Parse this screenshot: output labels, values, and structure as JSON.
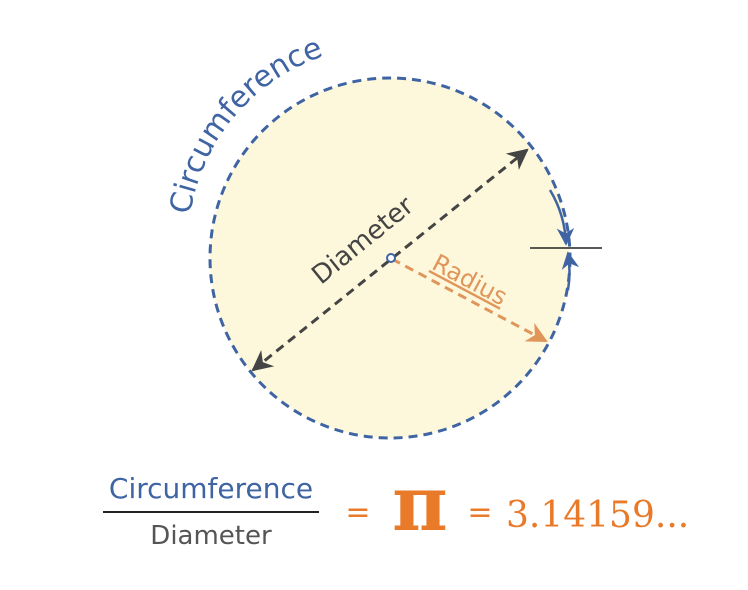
{
  "labels": {
    "circumference": "Circumference",
    "diameter": "Diameter",
    "radius": "Radius"
  },
  "formula": {
    "numerator": "Circumference",
    "denominator": "Diameter",
    "equals_1": "=",
    "pi_symbol": "π",
    "equals_2": "=",
    "value": "3.14159..."
  },
  "colors": {
    "circumference_blue": "#3f64a3",
    "diameter_gray": "#444444",
    "radius_orange": "#e0955a",
    "pi_orange": "#e87a2a",
    "circle_fill": "#fdf8dc"
  }
}
